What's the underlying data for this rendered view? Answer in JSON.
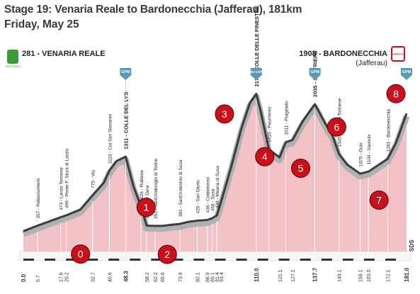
{
  "header": {
    "title": "Stage 19: Venaria Reale to Bardonecchia (Jafferau), 181km",
    "subtitle": "Friday, May 25"
  },
  "colors": {
    "profile_fill": "#f2c2c7",
    "profile_dark": "#3c3c3c",
    "profile_grey": "#b0b0b0",
    "marker_fill": "#c8111a",
    "banner": "#5a9ab0",
    "start_icon": "#3a9a3a",
    "finish_icon": "#c8111a"
  },
  "chart_data": {
    "type": "area",
    "start": {
      "label": "281 - VENARIA REALE",
      "icon": "start-flag-icon",
      "icon_text": "PARTENZA"
    },
    "finish": {
      "label": "1908 - BARDONECCHIA",
      "sublabel": "(Jafferau)",
      "icon": "finish-flag-icon",
      "icon_text": "ARRIVO"
    },
    "xlim": [
      0,
      181
    ],
    "ylim": [
      0,
      2300
    ],
    "profile": [
      {
        "km": 0.0,
        "alt": 281
      },
      {
        "km": 6.7,
        "alt": 357
      },
      {
        "km": 17.6,
        "alt": 473
      },
      {
        "km": 20.2,
        "alt": 499
      },
      {
        "km": 27,
        "alt": 580
      },
      {
        "km": 32.7,
        "alt": 775
      },
      {
        "km": 38,
        "alt": 950
      },
      {
        "km": 40.6,
        "alt": 1116
      },
      {
        "km": 44,
        "alt": 1250
      },
      {
        "km": 48.3,
        "alt": 1311
      },
      {
        "km": 52,
        "alt": 900
      },
      {
        "km": 55.5,
        "alt": 626
      },
      {
        "km": 58.2,
        "alt": 357
      },
      {
        "km": 62.2,
        "alt": 353
      },
      {
        "km": 65.6,
        "alt": 353
      },
      {
        "km": 70,
        "alt": 370
      },
      {
        "km": 73.9,
        "alt": 381
      },
      {
        "km": 78,
        "alt": 410
      },
      {
        "km": 82.1,
        "alt": 426
      },
      {
        "km": 86.9,
        "alt": 436
      },
      {
        "km": 89.1,
        "alt": 458
      },
      {
        "km": 91.4,
        "alt": 498
      },
      {
        "km": 93.4,
        "alt": 688
      },
      {
        "km": 98,
        "alt": 1150
      },
      {
        "km": 103,
        "alt": 1700
      },
      {
        "km": 107,
        "alt": 2050
      },
      {
        "km": 110.0,
        "alt": 2178
      },
      {
        "km": 112,
        "alt": 1950
      },
      {
        "km": 116,
        "alt": 1410
      },
      {
        "km": 121,
        "alt": 1300
      },
      {
        "km": 124,
        "alt": 1511
      },
      {
        "km": 127.1,
        "alt": 1540
      },
      {
        "km": 132,
        "alt": 1800
      },
      {
        "km": 137.7,
        "alt": 2035
      },
      {
        "km": 142,
        "alt": 1800
      },
      {
        "km": 146,
        "alt": 1600
      },
      {
        "km": 149.1,
        "alt": 1345
      },
      {
        "km": 153,
        "alt": 1200
      },
      {
        "km": 159.1,
        "alt": 1075
      },
      {
        "km": 163.0,
        "alt": 1104
      },
      {
        "km": 168,
        "alt": 1200
      },
      {
        "km": 172.1,
        "alt": 1281
      },
      {
        "km": 176,
        "alt": 1500
      },
      {
        "km": 181.0,
        "alt": 1908
      }
    ],
    "x_ticks": [
      "0.0",
      "6.7",
      "17.6",
      "20.2",
      "32.7",
      "40.6",
      "48.3",
      "58.2",
      "62.2",
      "65.6",
      "73.9",
      "82.1",
      "86.9",
      "89.1",
      "91.4",
      "93.4",
      "110.0",
      "121.1",
      "127.1",
      "137.7",
      "149.1",
      "159.1",
      "163.0",
      "172.1",
      "181.0"
    ],
    "x_ticks_bold": [
      "0.0",
      "48.3",
      "110.0",
      "137.7",
      "181.0"
    ],
    "point_labels": [
      {
        "km": 6.7,
        "text": "357 - Robassomero"
      },
      {
        "km": 17.6,
        "text": "473 - Lanzo Torinese"
      },
      {
        "km": 20.2,
        "text": "499 - Ponte F. Stura di Lanzo"
      },
      {
        "km": 32.7,
        "text": "775 - Viù"
      },
      {
        "km": 40.6,
        "text": "1116 - Col San Giovanni"
      },
      {
        "km": 48.3,
        "text": "1311 - COLLE DEL LYS",
        "bold": true
      },
      {
        "km": 55.5,
        "text": "626 - Rubiana"
      },
      {
        "km": 58.2,
        "text": "357 - Villar Dora"
      },
      {
        "km": 62.2,
        "text": "353 - Sant'Ambrogio di Torino"
      },
      {
        "km": 73.9,
        "text": "381 - Sant'Antonino di Susa"
      },
      {
        "km": 82.1,
        "text": "426 - San Giorio"
      },
      {
        "km": 86.9,
        "text": "436 - Coldimosso"
      },
      {
        "km": 89.1,
        "text": "458 - Susa"
      },
      {
        "km": 91.4,
        "text": "498 - Meana di Susa"
      },
      {
        "km": 110.0,
        "text": "2178 - COLLE DELLE FINESTRE",
        "bold": true
      },
      {
        "km": 116,
        "text": "1410 - Pourrieres"
      },
      {
        "km": 124,
        "text": "1511 - Pragelato"
      },
      {
        "km": 137.7,
        "text": "2035 - SESTRIERE",
        "bold": true
      },
      {
        "km": 149.1,
        "text": "1345 - Cesana Torinese"
      },
      {
        "km": 159.1,
        "text": "1075 - Oulx"
      },
      {
        "km": 163.0,
        "text": "1104 - Savoulx"
      },
      {
        "km": 172.1,
        "text": "1281 - Bardonecchia"
      }
    ],
    "climb_banners": [
      {
        "km": 48.3,
        "text": "GPM"
      },
      {
        "km": 110.0,
        "text": "CIMA COPPI"
      },
      {
        "km": 137.7,
        "text": "GPM"
      },
      {
        "km": 181.0,
        "text": "GPM"
      }
    ],
    "markers": [
      {
        "label": "0",
        "km": 27,
        "alt": -35
      },
      {
        "label": "1",
        "km": 58,
        "alt": 610
      },
      {
        "label": "2",
        "km": 68,
        "alt": -40
      },
      {
        "label": "3",
        "km": 95,
        "alt": 1900
      },
      {
        "label": "4",
        "km": 114,
        "alt": 1310
      },
      {
        "label": "5",
        "km": 131,
        "alt": 1150
      },
      {
        "label": "6",
        "km": 148,
        "alt": 1720
      },
      {
        "label": "7",
        "km": 168,
        "alt": 710
      },
      {
        "label": "8",
        "km": 176,
        "alt": 2180
      }
    ],
    "footer_text": "SDS"
  }
}
